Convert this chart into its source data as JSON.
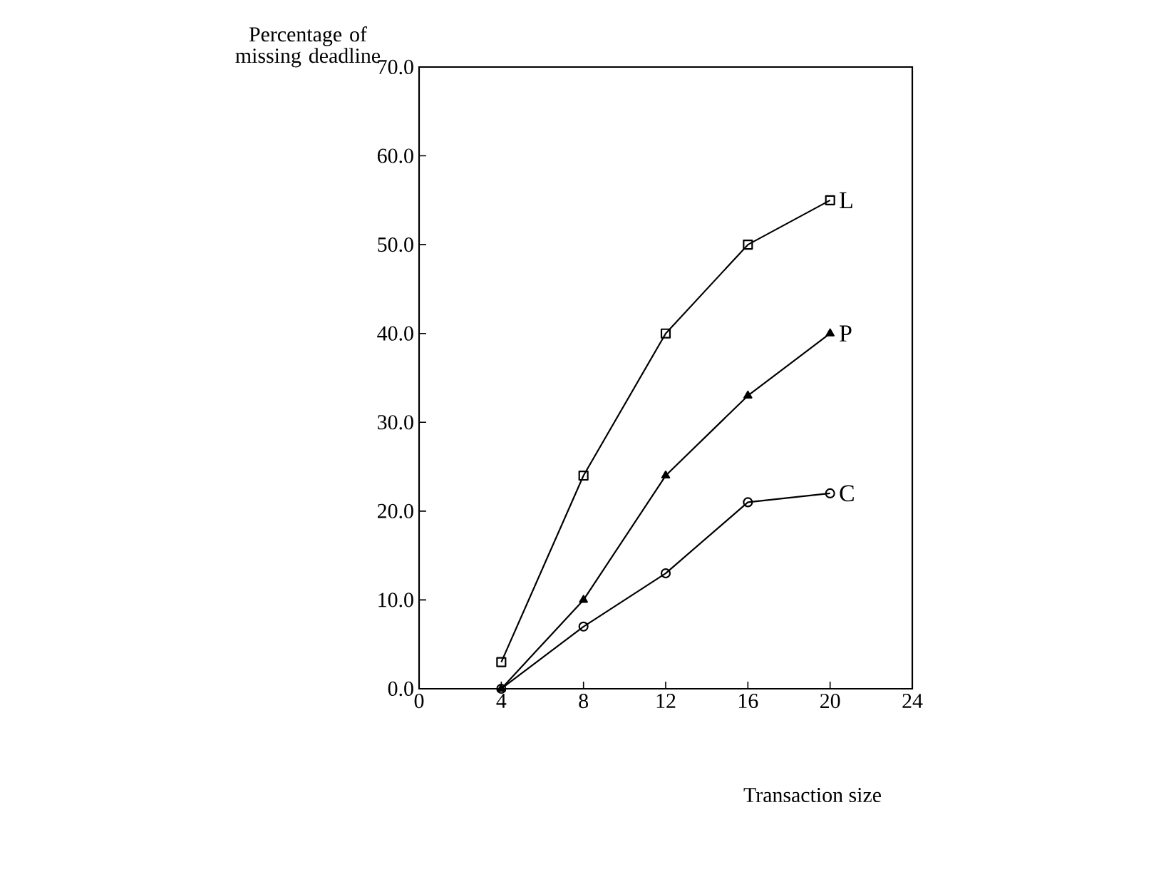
{
  "chart_data": {
    "type": "line",
    "ylabel": "Percentage of missing deadline",
    "xlabel": "Transaction size",
    "x": [
      4,
      8,
      12,
      16,
      20
    ],
    "series": [
      {
        "name": "L",
        "color": "#000000",
        "marker": "square",
        "values": [
          3,
          24,
          40,
          50,
          55
        ]
      },
      {
        "name": "P",
        "color": "#000000",
        "marker": "triangle",
        "values": [
          0,
          10,
          24,
          33,
          40
        ]
      },
      {
        "name": "C",
        "color": "#000000",
        "marker": "circle",
        "values": [
          0,
          7,
          13,
          21,
          22
        ]
      }
    ],
    "xlim": [
      0,
      24
    ],
    "xticks": [
      0,
      4,
      8,
      12,
      16,
      20,
      24
    ],
    "ylim": [
      0,
      70
    ],
    "yticks": [
      {
        "value": 0,
        "label": "0.0"
      },
      {
        "value": 10,
        "label": "10.0"
      },
      {
        "value": 20,
        "label": "20.0"
      },
      {
        "value": 30,
        "label": "30.0"
      },
      {
        "value": 40,
        "label": "40.0"
      },
      {
        "value": 50,
        "label": "50.0"
      },
      {
        "value": 60,
        "label": "60.0"
      },
      {
        "value": 70,
        "label": "70.0"
      }
    ],
    "grid": false,
    "line_style": "solid"
  }
}
